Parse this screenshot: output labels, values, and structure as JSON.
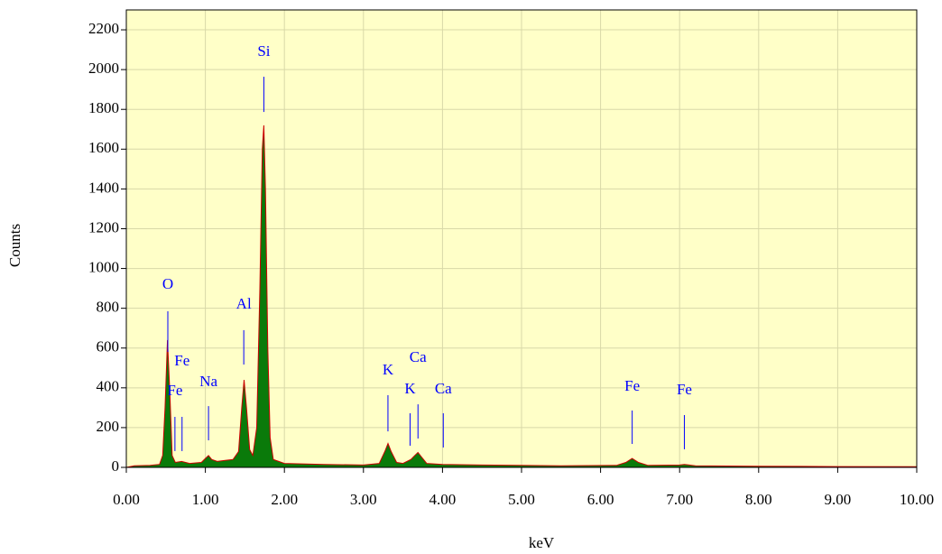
{
  "chart_data": {
    "type": "area",
    "x_label": "keV",
    "y_label": "Counts",
    "xlim": [
      0,
      10
    ],
    "ylim": [
      0,
      2300
    ],
    "xticks": [
      {
        "value": 0,
        "label": "0.00"
      },
      {
        "value": 1,
        "label": "1.00"
      },
      {
        "value": 2,
        "label": "2.00"
      },
      {
        "value": 3,
        "label": "3.00"
      },
      {
        "value": 4,
        "label": "4.00"
      },
      {
        "value": 5,
        "label": "5.00"
      },
      {
        "value": 6,
        "label": "6.00"
      },
      {
        "value": 7,
        "label": "7.00"
      },
      {
        "value": 8,
        "label": "8.00"
      },
      {
        "value": 9,
        "label": "9.00"
      },
      {
        "value": 10,
        "label": "10.00"
      }
    ],
    "yticks": [
      0,
      200,
      400,
      600,
      800,
      1000,
      1200,
      1400,
      1600,
      1800,
      2000,
      2200
    ],
    "grid": true,
    "background": "#ffffc8",
    "x": [
      0,
      0.1,
      0.3,
      0.42,
      0.46,
      0.49,
      0.52,
      0.55,
      0.58,
      0.62,
      0.7,
      0.8,
      0.95,
      1.0,
      1.04,
      1.08,
      1.15,
      1.25,
      1.35,
      1.42,
      1.46,
      1.49,
      1.52,
      1.56,
      1.6,
      1.65,
      1.69,
      1.72,
      1.74,
      1.76,
      1.79,
      1.82,
      1.86,
      2.0,
      2.5,
      3.0,
      3.2,
      3.27,
      3.31,
      3.35,
      3.42,
      3.5,
      3.6,
      3.65,
      3.69,
      3.74,
      3.8,
      4.0,
      4.5,
      5.0,
      5.5,
      6.2,
      6.32,
      6.4,
      6.48,
      6.6,
      7.0,
      7.06,
      7.2,
      8.0,
      9.0,
      10.0
    ],
    "series": [
      {
        "color": "#0a7a0a",
        "edge_color": "#cc0000",
        "values": [
          0,
          8,
          10,
          15,
          60,
          300,
          640,
          380,
          60,
          25,
          30,
          20,
          25,
          45,
          60,
          40,
          30,
          35,
          40,
          80,
          300,
          440,
          300,
          90,
          60,
          200,
          900,
          1600,
          1720,
          1400,
          600,
          150,
          40,
          20,
          15,
          12,
          20,
          80,
          120,
          80,
          25,
          20,
          40,
          60,
          75,
          50,
          20,
          15,
          12,
          10,
          8,
          10,
          25,
          45,
          25,
          10,
          12,
          15,
          8,
          6,
          4,
          3
        ]
      }
    ],
    "annotation_color": "#0000ff",
    "annotations": [
      {
        "label": "O",
        "x": 0.525,
        "top": 785,
        "bottom": 580,
        "label_y": 916
      },
      {
        "label": "Fe",
        "x": 0.705,
        "top": 254,
        "bottom": 82,
        "label_y": 530
      },
      {
        "label": "Fe",
        "x": 0.615,
        "top": 254,
        "bottom": 82,
        "label_y": 381
      },
      {
        "label": "Na",
        "x": 1.04,
        "top": 308,
        "bottom": 136,
        "label_y": 426
      },
      {
        "label": "Al",
        "x": 1.486,
        "top": 690,
        "bottom": 517,
        "label_y": 816
      },
      {
        "label": "Si",
        "x": 1.74,
        "top": 1964,
        "bottom": 1787,
        "label_y": 2086
      },
      {
        "label": "K",
        "x": 3.31,
        "top": 363,
        "bottom": 181,
        "label_y": 485
      },
      {
        "label": "K",
        "x": 3.59,
        "top": 272,
        "bottom": 109,
        "label_y": 390
      },
      {
        "label": "Ca",
        "x": 3.69,
        "top": 317,
        "bottom": 145,
        "label_y": 549
      },
      {
        "label": "Ca",
        "x": 4.01,
        "top": 272,
        "bottom": 100,
        "label_y": 390
      },
      {
        "label": "Fe",
        "x": 6.4,
        "top": 286,
        "bottom": 118,
        "label_y": 404
      },
      {
        "label": "Fe",
        "x": 7.06,
        "top": 263,
        "bottom": 91,
        "label_y": 386
      }
    ]
  }
}
